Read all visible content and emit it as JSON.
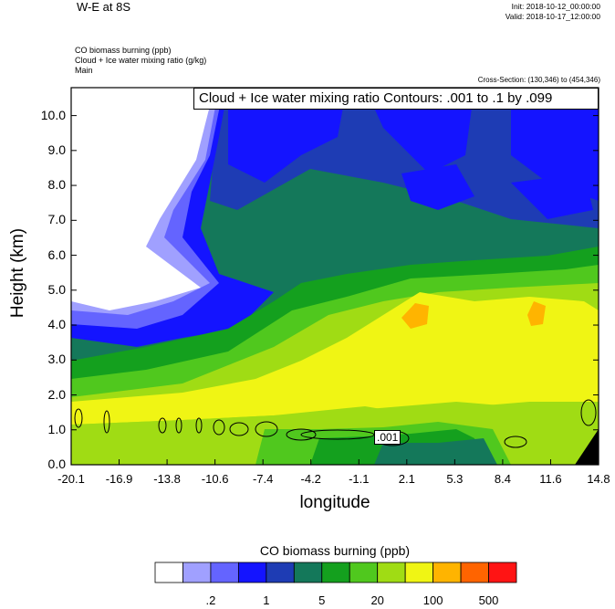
{
  "header": {
    "title": "W-E at 8S",
    "init": "Init: 2018-10-12_00:00:00",
    "valid": "Valid: 2018-10-17_12:00:00",
    "fields": [
      "CO biomass burning   (ppb)",
      "Cloud + Ice water mixing ratio   (g/kg)",
      "Main"
    ],
    "cross_section": "Cross-Section: (130,346) to (454,346)"
  },
  "contour_label": "Cloud + Ice water mixing ratio Contours: .001 to .1 by .099",
  "contour_value_label": ".001",
  "chart_data": {
    "type": "heatmap",
    "xlabel": "longitude",
    "ylabel": "Height (km)",
    "x_ticks": [
      "-20.1",
      "-16.9",
      "-13.8",
      "-10.6",
      "-7.4",
      "-4.2",
      "-1.1",
      "2.1",
      "5.3",
      "8.4",
      "11.6",
      "14.8"
    ],
    "y_ticks": [
      "0.0",
      "1.0",
      "2.0",
      "3.0",
      "4.0",
      "5.0",
      "6.0",
      "7.0",
      "8.0",
      "9.0",
      "10.0"
    ],
    "ylim": [
      0,
      10.8
    ],
    "colorbar": {
      "title": "CO biomass burning  (ppb)",
      "colors": [
        "#ffffff",
        "#a0a0ff",
        "#6464ff",
        "#1414ff",
        "#1e3cb4",
        "#14785a",
        "#14a01e",
        "#50c81e",
        "#a0dc14",
        "#f0f514",
        "#ffb400",
        "#ff6400",
        "#ff1414"
      ],
      "labels": [
        ".2",
        "1",
        "5",
        "20",
        "100",
        "500"
      ]
    }
  }
}
